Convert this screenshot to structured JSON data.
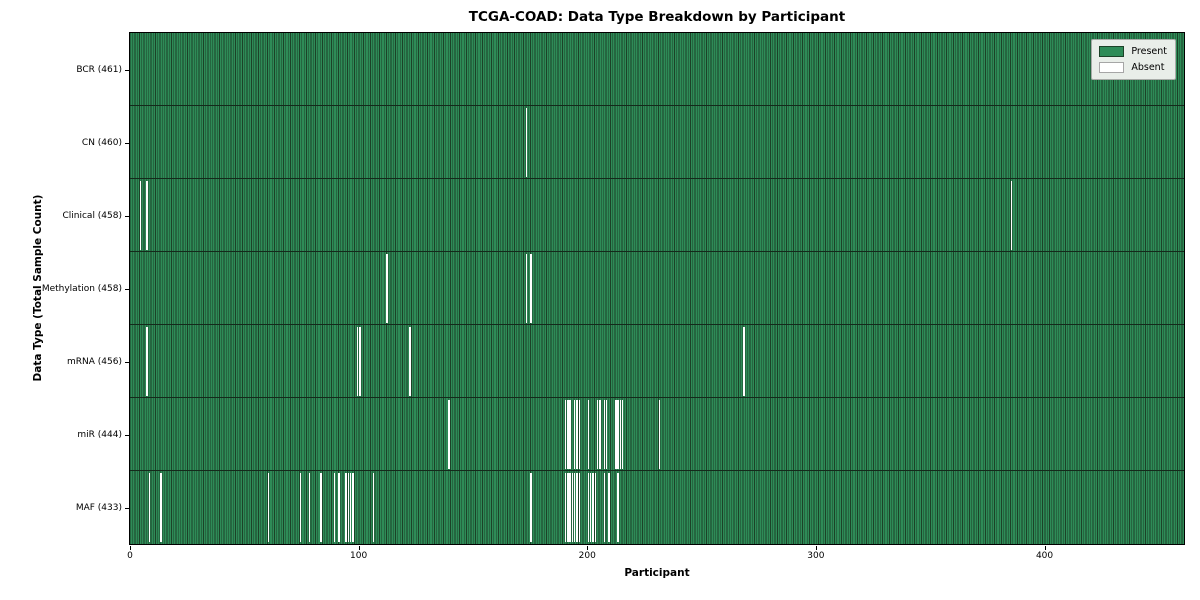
{
  "title": "TCGA-COAD: Data Type Breakdown by Participant",
  "x_axis_label": "Participant",
  "y_axis_label": "Data Type (Total Sample Count)",
  "legend": {
    "present_label": "Present",
    "absent_label": "Absent"
  },
  "colors": {
    "present": "#2e8b57",
    "present_edge": "#1c4228",
    "absent": "#ffffff",
    "row_separator": "#142a1b",
    "legend_bg": "#e9eee9",
    "axis": "#000000"
  },
  "chart_data": {
    "type": "heatmap",
    "title": "TCGA-COAD: Data Type Breakdown by Participant",
    "xlabel": "Participant",
    "ylabel": "Data Type (Total Sample Count)",
    "legend_entries": [
      "Present",
      "Absent"
    ],
    "legend_position": "upper right",
    "x_ticks": [
      0,
      100,
      200,
      300,
      400
    ],
    "xlim": [
      0,
      461
    ],
    "total_participants": 461,
    "rows": [
      {
        "name": "BCR",
        "label": "BCR (461)",
        "present_count": 461,
        "absent_count": 0,
        "absent_participants": []
      },
      {
        "name": "CN",
        "label": "CN (460)",
        "present_count": 460,
        "absent_count": 1,
        "absent_participants": [
          173
        ]
      },
      {
        "name": "Clinical",
        "label": "Clinical (458)",
        "present_count": 458,
        "absent_count": 3,
        "absent_participants": [
          4,
          7,
          385
        ]
      },
      {
        "name": "Methylation",
        "label": "Methylation (458)",
        "present_count": 458,
        "absent_count": 3,
        "absent_participants": [
          112,
          173,
          175
        ]
      },
      {
        "name": "mRNA",
        "label": "mRNA (456)",
        "present_count": 456,
        "absent_count": 5,
        "absent_participants": [
          7,
          99,
          100,
          122,
          268
        ]
      },
      {
        "name": "miR",
        "label": "miR (444)",
        "present_count": 444,
        "absent_count": 17,
        "absent_participants": [
          139,
          190,
          191,
          192,
          194,
          195,
          196,
          200,
          204,
          205,
          207,
          208,
          212,
          213,
          214,
          215,
          231
        ]
      },
      {
        "name": "MAF",
        "label": "MAF (433)",
        "present_count": 433,
        "absent_count": 28,
        "absent_participants": [
          8,
          13,
          60,
          74,
          78,
          83,
          89,
          91,
          94,
          95,
          96,
          97,
          106,
          175,
          190,
          191,
          192,
          193,
          194,
          195,
          196,
          200,
          201,
          202,
          203,
          207,
          209,
          213
        ]
      }
    ]
  }
}
